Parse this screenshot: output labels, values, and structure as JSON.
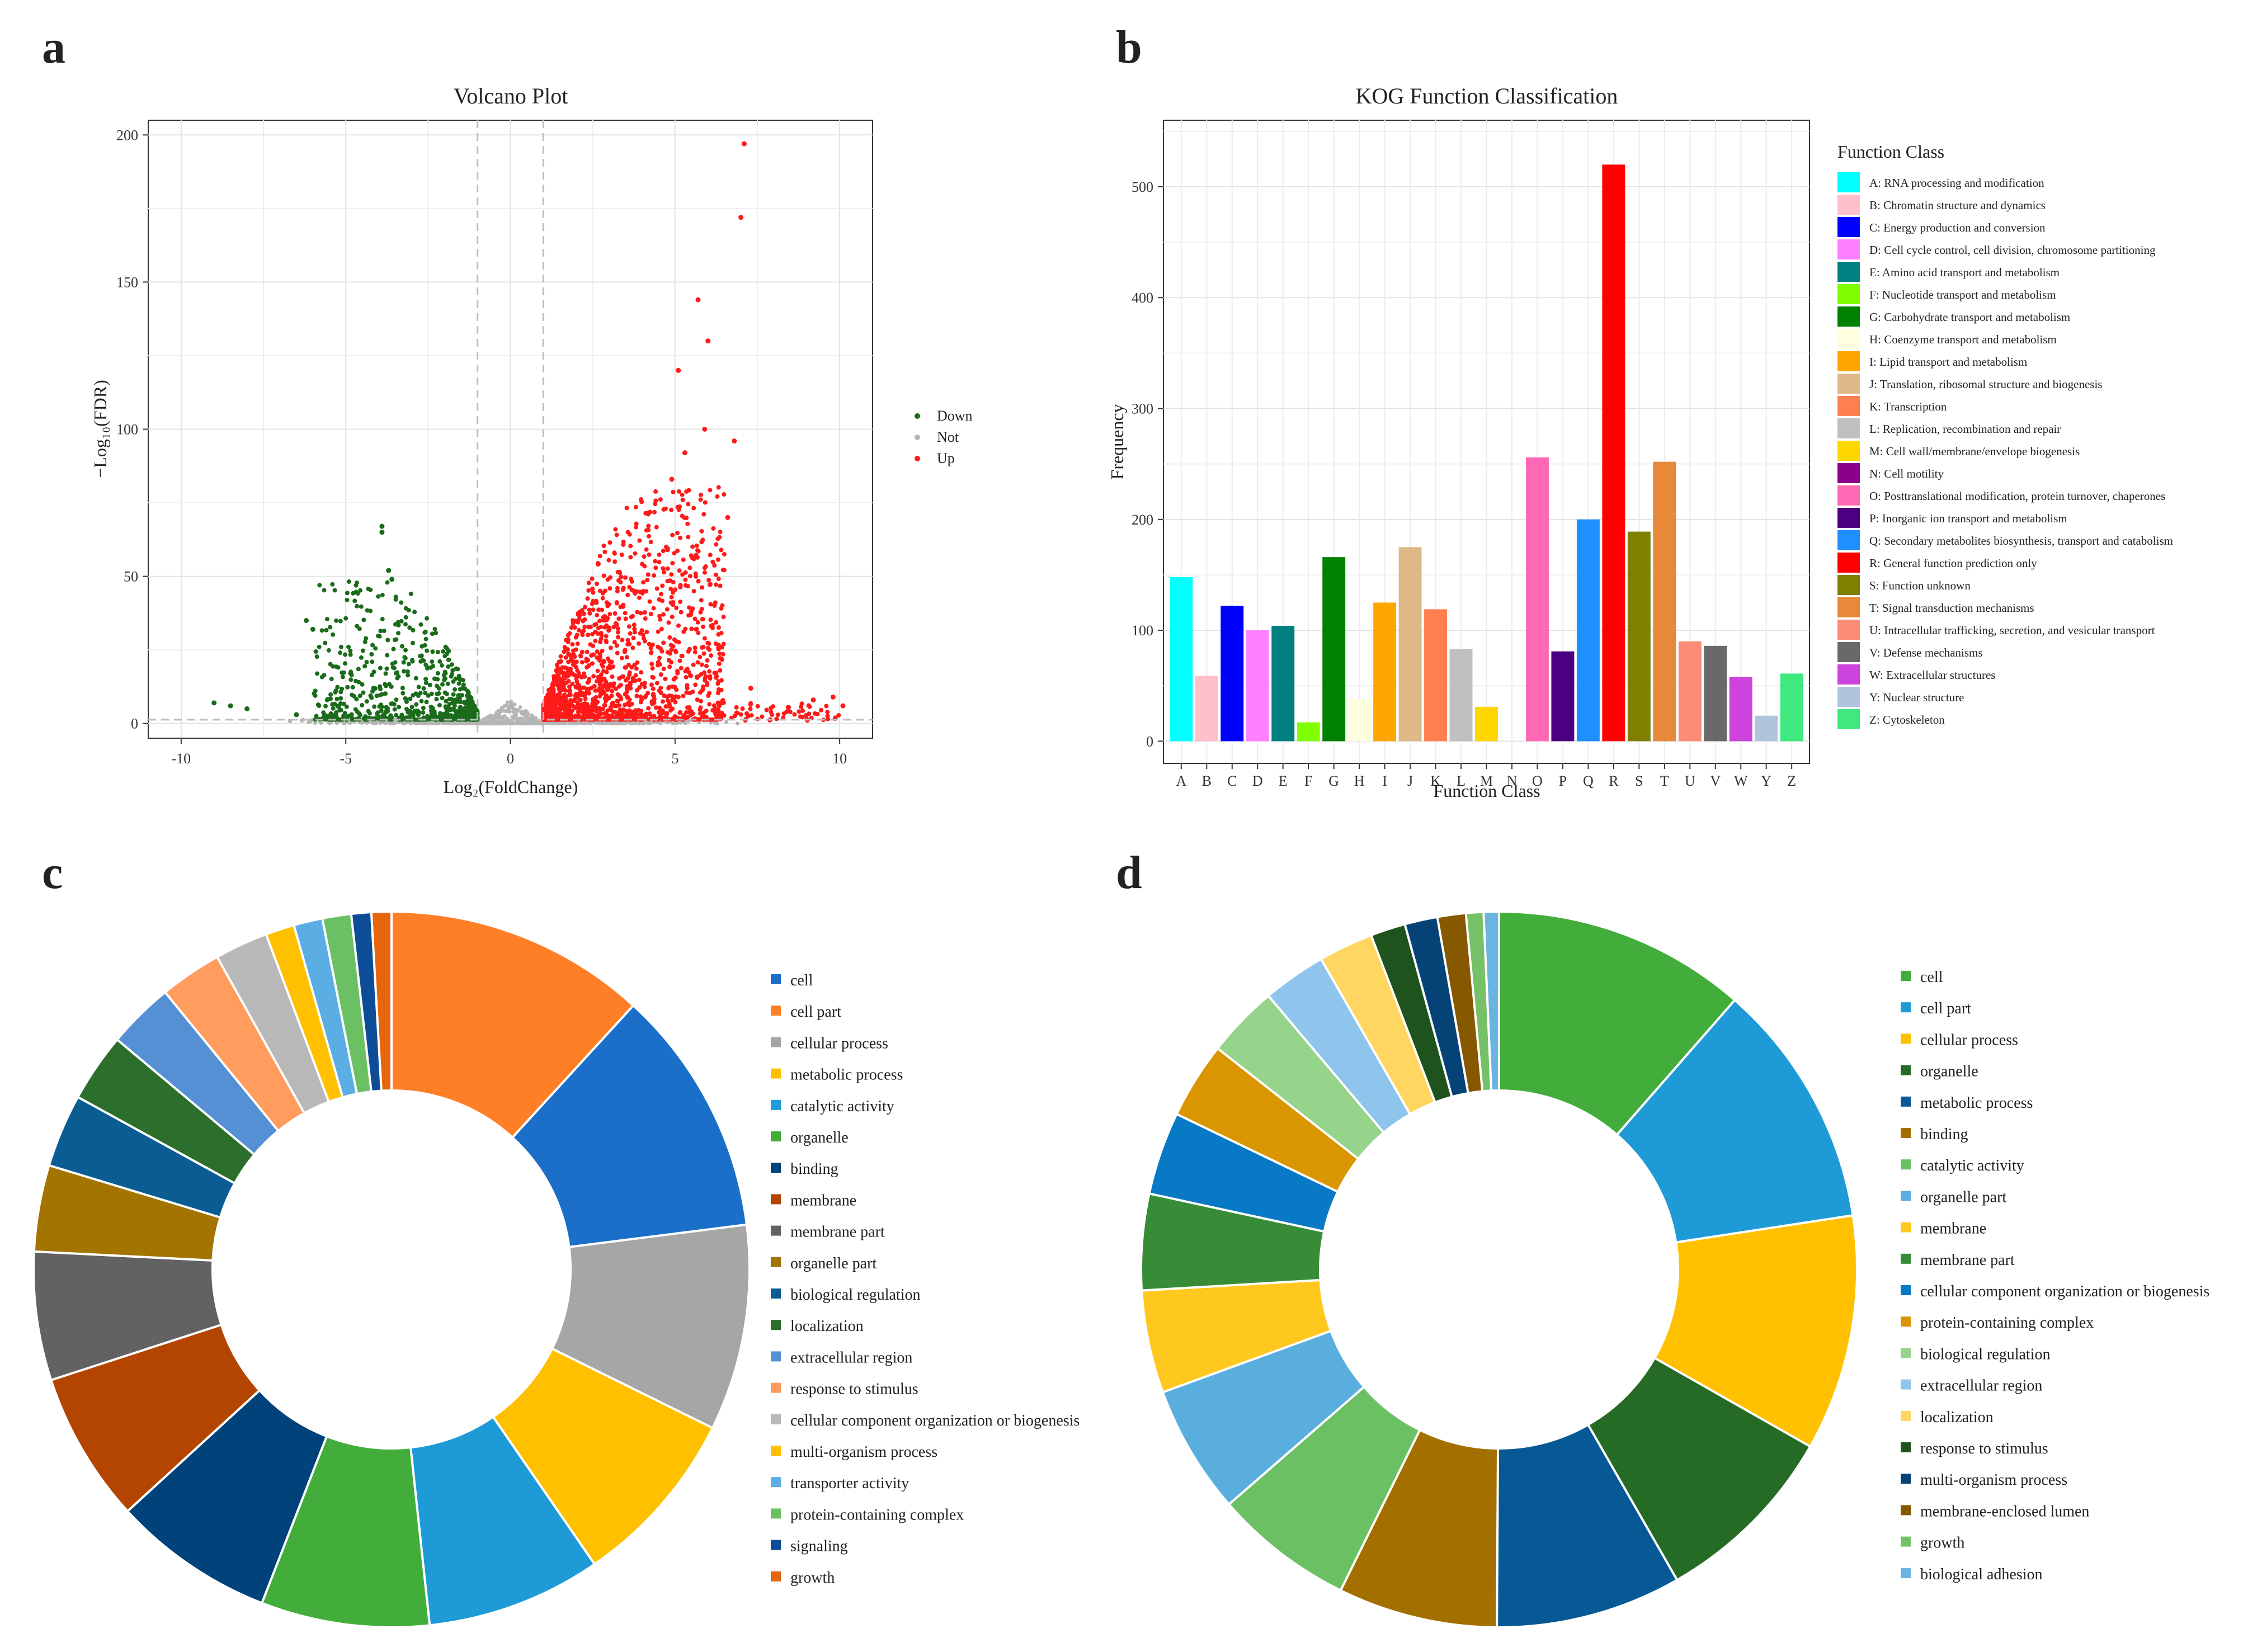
{
  "panels": {
    "a": "a",
    "b": "b",
    "c": "c",
    "d": "d"
  },
  "chart_data": [
    {
      "id": "a",
      "type": "scatter",
      "title": "Volcano Plot",
      "xlabel": "Log₂(FoldChange)",
      "ylabel": "−Log₁₀(FDR)",
      "xlim": [
        -11,
        11
      ],
      "ylim": [
        -5,
        205
      ],
      "x_ticks": [
        -10,
        -5,
        0,
        5,
        10
      ],
      "y_ticks": [
        0,
        50,
        100,
        150,
        200
      ],
      "threshold_x": [
        -1,
        1
      ],
      "threshold_y": 1.3,
      "legend": [
        {
          "label": "Down",
          "color": "#1a6b1a"
        },
        {
          "label": "Not",
          "color": "#b5b5b5"
        },
        {
          "label": "Up",
          "color": "#ff1a1a"
        }
      ],
      "notable_points": {
        "up": [
          [
            7.1,
            197
          ],
          [
            7.0,
            172
          ],
          [
            5.7,
            144
          ],
          [
            6.0,
            130
          ],
          [
            5.1,
            120
          ],
          [
            5.9,
            100
          ],
          [
            6.8,
            96
          ],
          [
            5.3,
            92
          ],
          [
            4.9,
            83
          ],
          [
            6.6,
            70
          ],
          [
            7.3,
            12
          ],
          [
            9.2,
            8
          ],
          [
            9.8,
            9
          ],
          [
            10.1,
            6
          ]
        ],
        "down": [
          [
            -3.9,
            67
          ],
          [
            -3.9,
            65
          ],
          [
            -3.7,
            52
          ],
          [
            -3.6,
            49
          ],
          [
            -6.2,
            35
          ],
          [
            -6.0,
            32
          ],
          [
            -9.0,
            7
          ],
          [
            -8.5,
            6
          ],
          [
            -8.0,
            5
          ],
          [
            -6.5,
            3
          ]
        ]
      },
      "cloud": {
        "up_x_range": [
          1.0,
          6.5
        ],
        "down_x_range": [
          -6.0,
          -1.0
        ]
      }
    },
    {
      "id": "b",
      "type": "bar",
      "title": "KOG Function Classification",
      "xlabel": "Function Class",
      "ylabel": "Frequency",
      "ylim": [
        0,
        550
      ],
      "y_ticks": [
        0,
        100,
        200,
        300,
        400,
        500
      ],
      "legend_title": "Function Class",
      "categories": [
        "A",
        "B",
        "C",
        "D",
        "E",
        "F",
        "G",
        "H",
        "I",
        "J",
        "K",
        "L",
        "M",
        "N",
        "O",
        "P",
        "Q",
        "R",
        "S",
        "T",
        "U",
        "V",
        "W",
        "Y",
        "Z"
      ],
      "values": [
        148,
        59,
        122,
        100,
        104,
        17,
        166,
        38,
        125,
        175,
        119,
        83,
        31,
        0,
        256,
        81,
        200,
        520,
        189,
        252,
        90,
        86,
        58,
        23,
        61
      ],
      "colors": [
        "#00ffff",
        "#ffc0cb",
        "#0000ff",
        "#ff80ff",
        "#008080",
        "#80ff00",
        "#008000",
        "#ffffe0",
        "#ffa500",
        "#deb887",
        "#ff7f50",
        "#c0c0c0",
        "#ffd700",
        "#8b008b",
        "#ff69b4",
        "#4b0082",
        "#1e90ff",
        "#ff0000",
        "#808000",
        "#e8883a",
        "#fa8c78",
        "#696969",
        "#cc44dd",
        "#b0c4de",
        "#40e880"
      ],
      "legend_labels": [
        "A: RNA processing and modification",
        "B: Chromatin structure and dynamics",
        "C: Energy production and conversion",
        "D: Cell cycle control, cell division, chromosome partitioning",
        "E: Amino acid transport and metabolism",
        "F: Nucleotide transport and metabolism",
        "G: Carbohydrate transport and metabolism",
        "H: Coenzyme transport and metabolism",
        "I: Lipid transport and metabolism",
        "J: Translation, ribosomal structure and biogenesis",
        "K: Transcription",
        "L: Replication, recombination and repair",
        "M: Cell wall/membrane/envelope biogenesis",
        "N: Cell motility",
        "O: Posttranslational modification, protein turnover, chaperones",
        "P: Inorganic ion transport and metabolism",
        "Q: Secondary metabolites biosynthesis, transport and catabolism",
        "R: General function prediction only",
        "S: Function unknown",
        "T: Signal transduction mechanisms",
        "U: Intracellular trafficking, secretion, and vesicular transport",
        "V: Defense mechanisms",
        "W: Extracellular structures",
        "Y: Nuclear structure",
        "Z: Cytoskeleton"
      ]
    },
    {
      "id": "c",
      "type": "pie",
      "labels": [
        "cell",
        "cell part",
        "cellular process",
        "metabolic process",
        "catalytic activity",
        "organelle",
        "binding",
        "membrane",
        "membrane part",
        "organelle part",
        "biological regulation",
        "localization",
        "extracellular region",
        "response to stimulus",
        "cellular component organization or biogenesis",
        "multi-organism process",
        "transporter activity",
        "protein-containing complex",
        "signaling",
        "growth"
      ],
      "values": [
        11.8,
        11.2,
        9.3,
        8.1,
        7.9,
        7.6,
        7.3,
        6.8,
        5.8,
        3.9,
        3.3,
        3.1,
        3.0,
        2.8,
        2.4,
        1.3,
        1.3,
        1.3,
        0.9,
        0.9
      ],
      "colors": [
        "#ff7f27",
        "#1b6fc8",
        "#a6a6a6",
        "#ffc000",
        "#1e9bd7",
        "#43ad3c",
        "#00427a",
        "#b34500",
        "#626262",
        "#a37400",
        "#0a5c93",
        "#2c6f2c",
        "#5590d5",
        "#ff9c5e",
        "#b8b8b8",
        "#ffc000",
        "#5baee4",
        "#6cc064",
        "#0d4d98",
        "#e6650d"
      ],
      "legend_colors": [
        "#1b6fc8",
        "#ff7f27",
        "#a6a6a6",
        "#ffc000",
        "#1e9bd7",
        "#43ad3c",
        "#00427a",
        "#b34500",
        "#626262",
        "#a37400",
        "#0a5c93",
        "#2c6f2c",
        "#5590d5",
        "#ff9c5e",
        "#b8b8b8",
        "#ffc000",
        "#5baee4",
        "#6cc064",
        "#0d4d98",
        "#e6650d"
      ]
    },
    {
      "id": "d",
      "type": "pie",
      "labels": [
        "cell",
        "cell part",
        "cellular process",
        "organelle",
        "metabolic process",
        "binding",
        "catalytic activity",
        "organelle part",
        "membrane",
        "membrane part",
        "cellular component organization or biogenesis",
        "protein-containing complex",
        "biological regulation",
        "extracellular region",
        "localization",
        "response to stimulus",
        "multi-organism process",
        "membrane-enclosed lumen",
        "growth",
        "biological adhesion"
      ],
      "values": [
        11.6,
        11.3,
        10.8,
        8.6,
        8.5,
        7.3,
        6.4,
        5.9,
        4.7,
        4.4,
        3.8,
        3.5,
        3.3,
        2.9,
        2.5,
        1.6,
        1.5,
        1.3,
        0.8,
        0.7
      ],
      "colors": [
        "#43ad3c",
        "#1e9bd7",
        "#ffc000",
        "#256b25",
        "#065994",
        "#a37000",
        "#6cc064",
        "#5aaede",
        "#ffc81f",
        "#388c38",
        "#0879c4",
        "#d99600",
        "#96d48b",
        "#8fc5ec",
        "#ffd660",
        "#1e531e",
        "#054377",
        "#865800",
        "#76c068",
        "#6ab4e0"
      ]
    }
  ]
}
